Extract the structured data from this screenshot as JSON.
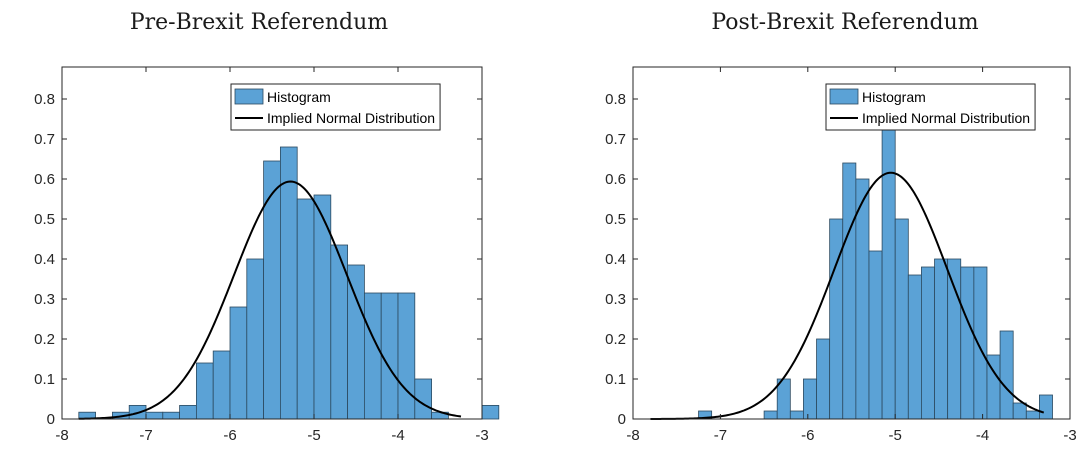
{
  "chart_data": [
    {
      "type": "bar",
      "title": "Pre-Brexit Referendum",
      "xlim": [
        -8,
        -3
      ],
      "ylim": [
        0,
        0.88
      ],
      "xticks": [
        "-8",
        "-7",
        "-6",
        "-5",
        "-4",
        "-3"
      ],
      "yticks": [
        "0",
        "0.1",
        "0.2",
        "0.3",
        "0.4",
        "0.5",
        "0.6",
        "0.7",
        "0.8"
      ],
      "legend": {
        "position": "top-right",
        "entries": [
          "Histogram",
          "Implied Normal Distribution"
        ]
      },
      "histogram": {
        "bin_start": -7.8,
        "bin_width": 0.2,
        "values": [
          0.017,
          0,
          0.017,
          0.034,
          0.017,
          0.017,
          0.034,
          0.14,
          0.17,
          0.28,
          0.4,
          0.645,
          0.68,
          0.55,
          0.56,
          0.435,
          0.385,
          0.315,
          0.315,
          0.315,
          0.1,
          0.017,
          0,
          0,
          0.034
        ]
      },
      "normal": {
        "mean": -5.28,
        "sd": 0.672,
        "x_range": [
          -7.8,
          -3.25
        ]
      },
      "colors": {
        "bar": "#5ba2d6",
        "bar_edge": "#2c4a60",
        "curve": "#000000"
      }
    },
    {
      "type": "bar",
      "title": "Post-Brexit Referendum",
      "xlim": [
        -8,
        -3
      ],
      "ylim": [
        0,
        0.88
      ],
      "xticks": [
        "-8",
        "-7",
        "-6",
        "-5",
        "-4",
        "-3"
      ],
      "yticks": [
        "0",
        "0.1",
        "0.2",
        "0.3",
        "0.4",
        "0.5",
        "0.6",
        "0.7",
        "0.8"
      ],
      "legend": {
        "position": "top-right",
        "entries": [
          "Histogram",
          "Implied Normal Distribution"
        ]
      },
      "histogram": {
        "bin_start": -7.25,
        "bin_width": 0.15,
        "values": [
          0.02,
          0,
          0,
          0,
          0,
          0.02,
          0.1,
          0.02,
          0.1,
          0.2,
          0.5,
          0.64,
          0.6,
          0.42,
          0.76,
          0.5,
          0.36,
          0.38,
          0.4,
          0.4,
          0.38,
          0.38,
          0.16,
          0.22,
          0.04,
          0.02,
          0.06
        ]
      },
      "normal": {
        "mean": -5.05,
        "sd": 0.648,
        "x_range": [
          -7.8,
          -3.3
        ]
      },
      "colors": {
        "bar": "#5ba2d6",
        "bar_edge": "#2c4a60",
        "curve": "#000000"
      }
    }
  ]
}
